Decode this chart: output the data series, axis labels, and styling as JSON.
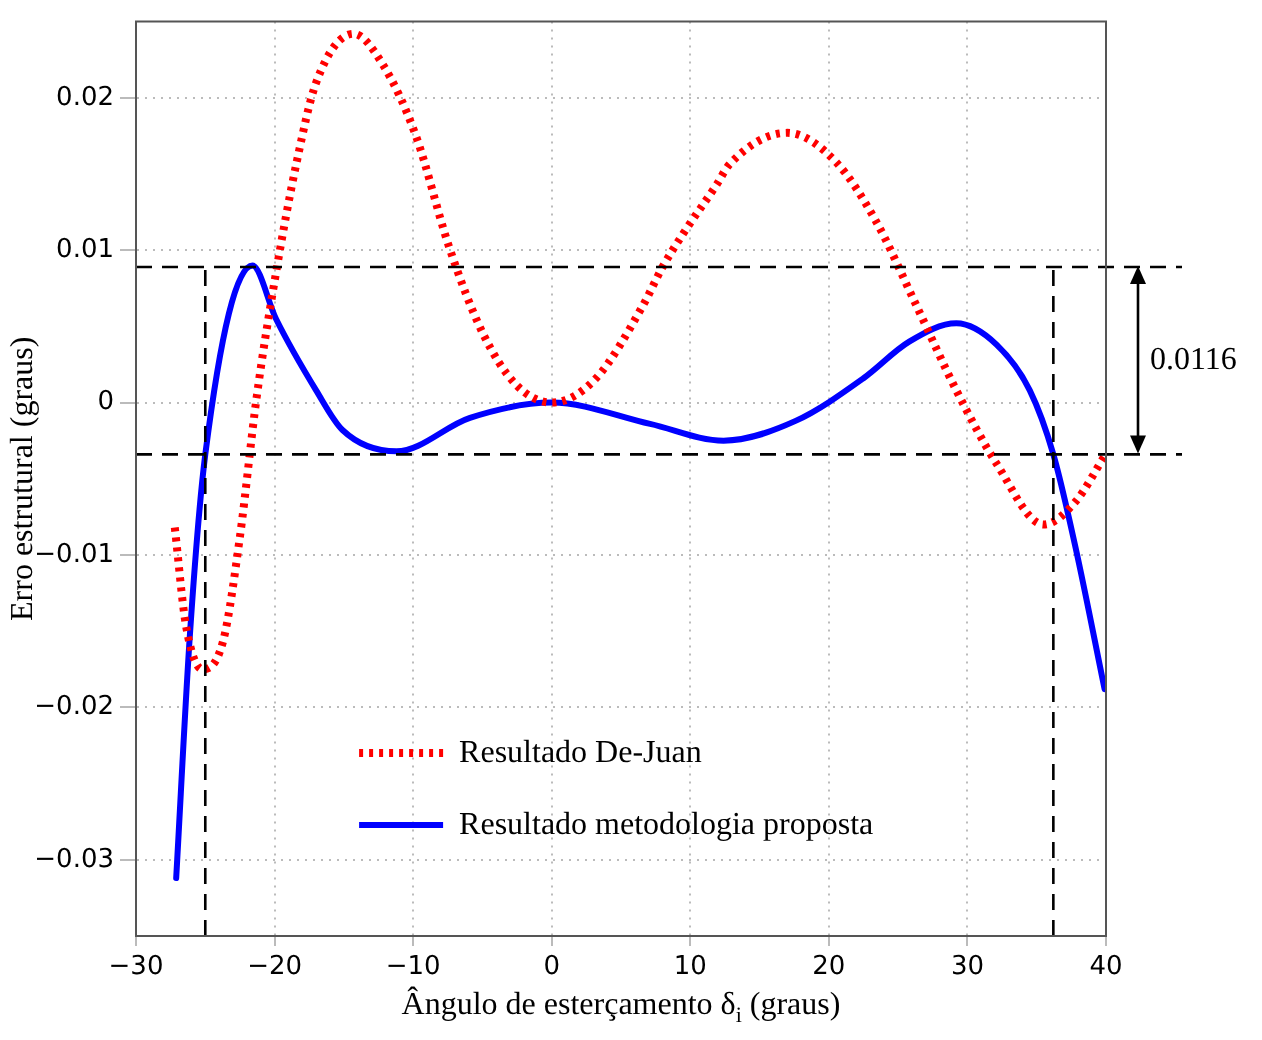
{
  "chart_data": {
    "type": "line",
    "xlabel": "Ângulo de esterçamento δ$_{i}$ (graus)",
    "ylabel": "Erro estrutural (graus)",
    "xlim": [
      -30,
      40
    ],
    "xticks": [
      {
        "value": -30,
        "label": "−30"
      },
      {
        "value": -20,
        "label": "−20"
      },
      {
        "value": -10,
        "label": "−10"
      },
      0,
      10,
      20,
      30,
      40
    ],
    "ylim": [
      -0.035,
      0.025
    ],
    "yticks": [
      {
        "value": -0.03,
        "label": "−0.03"
      },
      {
        "value": -0.02,
        "label": "−0.02"
      },
      {
        "value": -0.01,
        "label": "−0.01"
      },
      0,
      0.01,
      0.02
    ],
    "grid": true,
    "legend": "bottom",
    "marker": "none",
    "series": [
      {
        "name": "Resultado De-Juan",
        "color": "#ff0000",
        "line_style": "dotted",
        "x": [
          -27.2,
          -26.4,
          -25.2,
          -23.7,
          -22.5,
          -21.3,
          -19.9,
          -18.4,
          -17,
          -14.3,
          -12.2,
          -9.8,
          -7.4,
          -5,
          -2.6,
          0,
          3.2,
          6.6,
          8,
          9.5,
          11.9,
          12.8,
          17,
          20.5,
          23.4,
          26.3,
          29.2,
          32.1,
          35.5,
          37.8,
          39.9
        ],
        "values": [
          -0.0082,
          -0.0146,
          -0.0175,
          -0.0156,
          -0.0088,
          0.0003,
          0.0085,
          0.0158,
          0.021,
          0.0242,
          0.0222,
          0.0175,
          0.0102,
          0.0046,
          0.0012,
          0,
          0.0016,
          0.0064,
          0.0089,
          0.0111,
          0.0143,
          0.0156,
          0.0177,
          0.0158,
          0.0119,
          0.0064,
          0.0008,
          -0.004,
          -0.008,
          -0.0065,
          -0.0035
        ]
      },
      {
        "name": "Resultado metodologia proposta",
        "color": "#0000ff",
        "line_style": "solid",
        "x": [
          -27.1,
          -26.1,
          -25,
          -21.6,
          -19.9,
          -17,
          -15.1,
          -11.2,
          -5.9,
          0,
          7.1,
          12.4,
          17.6,
          22.5,
          25.8,
          29.2,
          32.1,
          34.5,
          36.2,
          37.8,
          39.9
        ],
        "values": [
          -0.0312,
          -0.0151,
          -0.0034,
          0.009,
          0.0055,
          0.0008,
          -0.0018,
          -0.0032,
          -0.001,
          0,
          -0.0014,
          -0.0025,
          -0.0012,
          0.0016,
          0.004,
          0.0052,
          0.0038,
          0.0008,
          -0.0034,
          -0.0095,
          -0.0188
        ]
      }
    ],
    "ref_lines": [
      {
        "axis": "y",
        "value": 0.0089,
        "color": "#000000",
        "line_style": "dashed"
      },
      {
        "axis": "y",
        "value": -0.0034,
        "color": "#000000",
        "line_style": "dashed"
      },
      {
        "axis": "x",
        "value": -25,
        "color": "#000000",
        "line_style": "dashed"
      },
      {
        "axis": "x",
        "value": 36.2,
        "color": "#000000",
        "line_style": "dashed"
      }
    ],
    "annotations": [
      "0.0116"
    ]
  }
}
